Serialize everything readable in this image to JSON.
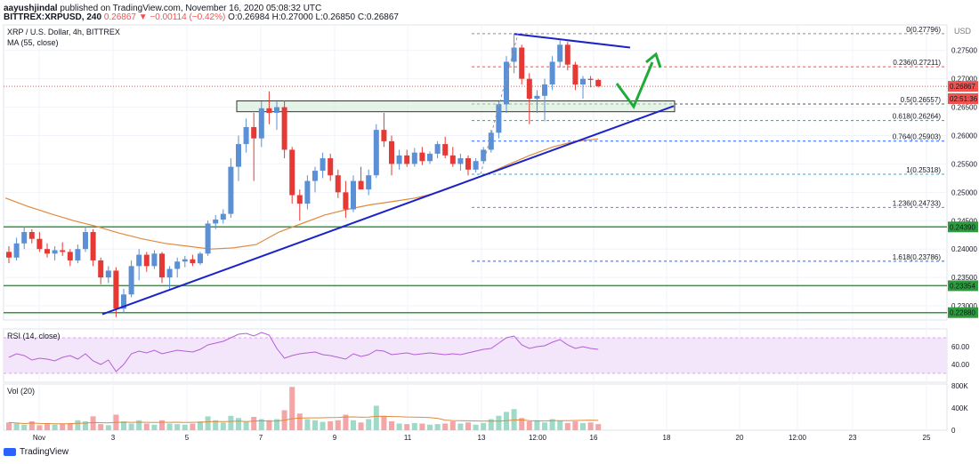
{
  "header": {
    "author": "aayushjindal",
    "published": "published on TradingView.com, November 16, 2020 05:08:32 UTC",
    "symbol_line": "BITTREX:XRPUSD, 240",
    "last": "0.26867",
    "change": "−0.00114 (−0.42%)",
    "open": "O:0.26984",
    "high": "H:0.27000",
    "low": "L:0.26850",
    "close": "C:0.26867",
    "arrow": "▼"
  },
  "main_pane": {
    "title": "XRP / U.S. Dollar, 4h, BITTREX",
    "ma_label": "MA (55, close)",
    "currency": "USD"
  },
  "rsi_pane": {
    "label": "RSI (14, close)"
  },
  "vol_pane": {
    "label": "Vol (20)"
  },
  "footer": {
    "brand": "TradingView"
  },
  "colors": {
    "up": "#26a69a",
    "down": "#ef5350",
    "bull_candle": "#5b8fd6",
    "bear_candle": "#e53935",
    "trendline": "#1a23c8",
    "ma": "#e08a3c",
    "hline": "#2e9a3e",
    "rsi": "#b45ed6",
    "arrow": "#1fab3a"
  },
  "chart_data": {
    "type": "candlestick",
    "price_axis": {
      "ticks": [
        0.275,
        0.27,
        0.265,
        0.26,
        0.255,
        0.25,
        0.245,
        0.24,
        0.235,
        0.23
      ],
      "tick_labels": [
        "0.27500",
        "0.27000",
        "0.26500",
        "0.26000",
        "0.25500",
        "0.25000",
        "0.24500",
        "0.24000",
        "0.23500",
        "0.23000"
      ],
      "range": [
        0.2275,
        0.2795
      ]
    },
    "time_axis": {
      "labels": [
        "Nov",
        "3",
        "5",
        "7",
        "9",
        "11",
        "13",
        "12:00",
        "16",
        "18",
        "20",
        "12:00",
        "23",
        "25"
      ]
    },
    "price_tags": [
      {
        "value": 0.26867,
        "label": "0.26867",
        "color": "#ef5350"
      },
      {
        "value": 0.2665,
        "label": "02:51:36",
        "color": "#ef5350"
      },
      {
        "value": 0.2439,
        "label": "0.24390",
        "color": "#2e9a3e"
      },
      {
        "value": 0.23354,
        "label": "0.23354",
        "color": "#2e9a3e"
      },
      {
        "value": 0.2288,
        "label": "0.22880",
        "color": "#2e9a3e"
      }
    ],
    "horizontal_levels": [
      0.2439,
      0.23354,
      0.2288
    ],
    "fibonacci": [
      {
        "ratio": "0",
        "value": 0.27796,
        "label": "0(0.27796)",
        "color": "#8c8c8c"
      },
      {
        "ratio": "0.236",
        "value": 0.27211,
        "label": "0.236(0.27211)",
        "color": "#ef5350"
      },
      {
        "ratio": "0.5",
        "value": 0.26557,
        "label": "0.5(0.26557)",
        "color": "#555555"
      },
      {
        "ratio": "0.618",
        "value": 0.26264,
        "label": "0.618(0.26264)",
        "color": "#26a69a"
      },
      {
        "ratio": "0.764",
        "value": 0.25903,
        "label": "0.764(0.25903)",
        "color": "#2962ff"
      },
      {
        "ratio": "1",
        "value": 0.25318,
        "label": "1(0.25318)",
        "color": "#4aa3b5"
      },
      {
        "ratio": "1.236",
        "value": 0.24733,
        "label": "1.236(0.24733)",
        "color": "#b45ed6"
      },
      {
        "ratio": "1.618",
        "value": 0.23786,
        "label": "1.618(0.23786)",
        "color": "#2962ff"
      }
    ],
    "resistance_zone": [
      0.2642,
      0.2661
    ],
    "candles": [
      {
        "o": 0.2395,
        "h": 0.2405,
        "l": 0.2375,
        "c": 0.2385
      },
      {
        "o": 0.2385,
        "h": 0.242,
        "l": 0.238,
        "c": 0.241
      },
      {
        "o": 0.241,
        "h": 0.244,
        "l": 0.24,
        "c": 0.243
      },
      {
        "o": 0.243,
        "h": 0.2435,
        "l": 0.241,
        "c": 0.2418
      },
      {
        "o": 0.2418,
        "h": 0.243,
        "l": 0.2395,
        "c": 0.24
      },
      {
        "o": 0.24,
        "h": 0.241,
        "l": 0.2385,
        "c": 0.2392
      },
      {
        "o": 0.2392,
        "h": 0.2405,
        "l": 0.238,
        "c": 0.2398
      },
      {
        "o": 0.2398,
        "h": 0.2412,
        "l": 0.2388,
        "c": 0.2395
      },
      {
        "o": 0.2395,
        "h": 0.24,
        "l": 0.237,
        "c": 0.238
      },
      {
        "o": 0.238,
        "h": 0.2408,
        "l": 0.2375,
        "c": 0.24
      },
      {
        "o": 0.24,
        "h": 0.244,
        "l": 0.2395,
        "c": 0.243
      },
      {
        "o": 0.243,
        "h": 0.2435,
        "l": 0.237,
        "c": 0.238
      },
      {
        "o": 0.238,
        "h": 0.2385,
        "l": 0.2338,
        "c": 0.235
      },
      {
        "o": 0.235,
        "h": 0.237,
        "l": 0.234,
        "c": 0.2362
      },
      {
        "o": 0.2362,
        "h": 0.2368,
        "l": 0.228,
        "c": 0.2295
      },
      {
        "o": 0.2295,
        "h": 0.233,
        "l": 0.2288,
        "c": 0.232
      },
      {
        "o": 0.232,
        "h": 0.238,
        "l": 0.2315,
        "c": 0.237
      },
      {
        "o": 0.237,
        "h": 0.24,
        "l": 0.2345,
        "c": 0.239
      },
      {
        "o": 0.239,
        "h": 0.2395,
        "l": 0.236,
        "c": 0.237
      },
      {
        "o": 0.237,
        "h": 0.2398,
        "l": 0.2365,
        "c": 0.2392
      },
      {
        "o": 0.2392,
        "h": 0.2395,
        "l": 0.234,
        "c": 0.235
      },
      {
        "o": 0.235,
        "h": 0.237,
        "l": 0.233,
        "c": 0.2365
      },
      {
        "o": 0.2365,
        "h": 0.2385,
        "l": 0.235,
        "c": 0.2378
      },
      {
        "o": 0.2378,
        "h": 0.2388,
        "l": 0.2368,
        "c": 0.2382
      },
      {
        "o": 0.2382,
        "h": 0.239,
        "l": 0.237,
        "c": 0.2375
      },
      {
        "o": 0.2375,
        "h": 0.2395,
        "l": 0.2372,
        "c": 0.2392
      },
      {
        "o": 0.2392,
        "h": 0.245,
        "l": 0.2388,
        "c": 0.2445
      },
      {
        "o": 0.2445,
        "h": 0.246,
        "l": 0.2435,
        "c": 0.2452
      },
      {
        "o": 0.2452,
        "h": 0.247,
        "l": 0.2445,
        "c": 0.2462
      },
      {
        "o": 0.2462,
        "h": 0.256,
        "l": 0.2455,
        "c": 0.2545
      },
      {
        "o": 0.2545,
        "h": 0.26,
        "l": 0.252,
        "c": 0.2585
      },
      {
        "o": 0.2585,
        "h": 0.263,
        "l": 0.257,
        "c": 0.2615
      },
      {
        "o": 0.2615,
        "h": 0.264,
        "l": 0.252,
        "c": 0.2595
      },
      {
        "o": 0.2595,
        "h": 0.266,
        "l": 0.258,
        "c": 0.2648
      },
      {
        "o": 0.2648,
        "h": 0.2678,
        "l": 0.262,
        "c": 0.264
      },
      {
        "o": 0.264,
        "h": 0.266,
        "l": 0.261,
        "c": 0.265
      },
      {
        "o": 0.265,
        "h": 0.2662,
        "l": 0.256,
        "c": 0.2575
      },
      {
        "o": 0.2575,
        "h": 0.258,
        "l": 0.248,
        "c": 0.2495
      },
      {
        "o": 0.2495,
        "h": 0.2505,
        "l": 0.245,
        "c": 0.248
      },
      {
        "o": 0.248,
        "h": 0.253,
        "l": 0.247,
        "c": 0.252
      },
      {
        "o": 0.252,
        "h": 0.2545,
        "l": 0.25,
        "c": 0.2538
      },
      {
        "o": 0.2538,
        "h": 0.257,
        "l": 0.2525,
        "c": 0.256
      },
      {
        "o": 0.256,
        "h": 0.2568,
        "l": 0.252,
        "c": 0.253
      },
      {
        "o": 0.253,
        "h": 0.254,
        "l": 0.249,
        "c": 0.25
      },
      {
        "o": 0.25,
        "h": 0.252,
        "l": 0.2455,
        "c": 0.247
      },
      {
        "o": 0.247,
        "h": 0.253,
        "l": 0.2465,
        "c": 0.252
      },
      {
        "o": 0.252,
        "h": 0.2545,
        "l": 0.2505,
        "c": 0.2505
      },
      {
        "o": 0.2505,
        "h": 0.254,
        "l": 0.2495,
        "c": 0.253
      },
      {
        "o": 0.253,
        "h": 0.262,
        "l": 0.2525,
        "c": 0.261
      },
      {
        "o": 0.261,
        "h": 0.264,
        "l": 0.258,
        "c": 0.259
      },
      {
        "o": 0.259,
        "h": 0.26,
        "l": 0.253,
        "c": 0.255
      },
      {
        "o": 0.255,
        "h": 0.2575,
        "l": 0.254,
        "c": 0.2565
      },
      {
        "o": 0.2565,
        "h": 0.2575,
        "l": 0.2545,
        "c": 0.255
      },
      {
        "o": 0.255,
        "h": 0.2578,
        "l": 0.2545,
        "c": 0.257
      },
      {
        "o": 0.257,
        "h": 0.258,
        "l": 0.2548,
        "c": 0.2555
      },
      {
        "o": 0.2555,
        "h": 0.2572,
        "l": 0.255,
        "c": 0.2568
      },
      {
        "o": 0.2568,
        "h": 0.259,
        "l": 0.256,
        "c": 0.2585
      },
      {
        "o": 0.2585,
        "h": 0.2598,
        "l": 0.256,
        "c": 0.2565
      },
      {
        "o": 0.2565,
        "h": 0.258,
        "l": 0.2545,
        "c": 0.255
      },
      {
        "o": 0.255,
        "h": 0.2568,
        "l": 0.2538,
        "c": 0.256
      },
      {
        "o": 0.256,
        "h": 0.2565,
        "l": 0.253,
        "c": 0.254
      },
      {
        "o": 0.254,
        "h": 0.256,
        "l": 0.2535,
        "c": 0.2555
      },
      {
        "o": 0.2555,
        "h": 0.258,
        "l": 0.255,
        "c": 0.2575
      },
      {
        "o": 0.2575,
        "h": 0.261,
        "l": 0.257,
        "c": 0.2605
      },
      {
        "o": 0.2605,
        "h": 0.266,
        "l": 0.2595,
        "c": 0.2655
      },
      {
        "o": 0.2655,
        "h": 0.274,
        "l": 0.264,
        "c": 0.273
      },
      {
        "o": 0.273,
        "h": 0.278,
        "l": 0.271,
        "c": 0.2755
      },
      {
        "o": 0.2755,
        "h": 0.276,
        "l": 0.269,
        "c": 0.27
      },
      {
        "o": 0.27,
        "h": 0.271,
        "l": 0.262,
        "c": 0.2665
      },
      {
        "o": 0.2665,
        "h": 0.268,
        "l": 0.264,
        "c": 0.267
      },
      {
        "o": 0.267,
        "h": 0.27,
        "l": 0.2625,
        "c": 0.269
      },
      {
        "o": 0.269,
        "h": 0.274,
        "l": 0.268,
        "c": 0.273
      },
      {
        "o": 0.273,
        "h": 0.2768,
        "l": 0.272,
        "c": 0.276
      },
      {
        "o": 0.276,
        "h": 0.2765,
        "l": 0.2715,
        "c": 0.2725
      },
      {
        "o": 0.2725,
        "h": 0.273,
        "l": 0.268,
        "c": 0.269
      },
      {
        "o": 0.269,
        "h": 0.2705,
        "l": 0.2665,
        "c": 0.27
      },
      {
        "o": 0.27,
        "h": 0.2705,
        "l": 0.2685,
        "c": 0.2698
      },
      {
        "o": 0.2698,
        "h": 0.27,
        "l": 0.2685,
        "c": 0.2687
      }
    ],
    "ma55": [
      0.249,
      0.2475,
      0.2462,
      0.245,
      0.244,
      0.2428,
      0.2418,
      0.241,
      0.2405,
      0.24,
      0.2402,
      0.2408,
      0.243,
      0.2445,
      0.246,
      0.247,
      0.2478,
      0.2484,
      0.249,
      0.25,
      0.2515,
      0.253,
      0.2548,
      0.2565,
      0.258,
      0.259,
      0.2594
    ],
    "trendline_support": [
      [
        0.2285,
        0
      ],
      [
        0.2652,
        1
      ]
    ],
    "trendline_resistance": [
      [
        0.2779,
        0
      ],
      [
        0.2755,
        1
      ]
    ],
    "rsi_axis": {
      "ticks": [
        60.0,
        40.0
      ],
      "tick_labels": [
        "60.00",
        "40.00"
      ]
    },
    "rsi": [
      48,
      52,
      50,
      45,
      47,
      46,
      44,
      48,
      50,
      46,
      52,
      44,
      40,
      45,
      32,
      40,
      52,
      55,
      53,
      56,
      52,
      54,
      56,
      55,
      54,
      57,
      62,
      64,
      66,
      70,
      74,
      75,
      72,
      76,
      73,
      58,
      47,
      50,
      52,
      53,
      54,
      51,
      50,
      48,
      46,
      52,
      49,
      51,
      56,
      55,
      51,
      52,
      53,
      51,
      52,
      53,
      52,
      51,
      52,
      51,
      53,
      55,
      57,
      58,
      64,
      70,
      72,
      62,
      58,
      60,
      61,
      65,
      68,
      62,
      58,
      60,
      58,
      57
    ],
    "vol_axis": {
      "ticks": [
        800,
        400,
        0
      ],
      "tick_labels": [
        "800K",
        "400K",
        "0"
      ]
    },
    "volume": [
      140,
      120,
      100,
      160,
      90,
      110,
      100,
      120,
      130,
      180,
      160,
      250,
      110,
      90,
      280,
      160,
      120,
      180,
      120,
      100,
      180,
      120,
      110,
      100,
      120,
      160,
      250,
      180,
      140,
      260,
      220,
      150,
      240,
      200,
      180,
      200,
      360,
      780,
      300,
      200,
      180,
      150,
      160,
      180,
      280,
      180,
      140,
      200,
      440,
      260,
      160,
      120,
      110,
      130,
      120,
      100,
      110,
      120,
      160,
      120,
      140,
      100,
      130,
      200,
      260,
      330,
      380,
      220,
      160,
      180,
      140,
      200,
      170,
      130,
      160,
      130,
      140,
      110
    ]
  }
}
